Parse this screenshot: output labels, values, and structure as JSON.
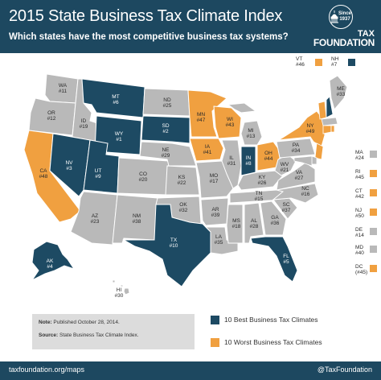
{
  "header": {
    "title": "2015 State Business Tax Climate Index",
    "subtitle": "Which states have the most competitive business tax systems?"
  },
  "logo": {
    "since": "Since",
    "year": "1937",
    "line1": "TAX",
    "line2": "FOUNDATION"
  },
  "colors": {
    "best": "#1d4a63",
    "worst": "#f0a040",
    "other": "#b9b9b9",
    "header": "#1d4860"
  },
  "states": [
    {
      "abbr": "WA",
      "rank": "#11",
      "category": "other"
    },
    {
      "abbr": "OR",
      "rank": "#12",
      "category": "other"
    },
    {
      "abbr": "CA",
      "rank": "#48",
      "category": "worst"
    },
    {
      "abbr": "ID",
      "rank": "#19",
      "category": "other"
    },
    {
      "abbr": "NV",
      "rank": "#3",
      "category": "best"
    },
    {
      "abbr": "MT",
      "rank": "#6",
      "category": "best"
    },
    {
      "abbr": "WY",
      "rank": "#1",
      "category": "best"
    },
    {
      "abbr": "UT",
      "rank": "#9",
      "category": "best"
    },
    {
      "abbr": "AZ",
      "rank": "#23",
      "category": "other"
    },
    {
      "abbr": "CO",
      "rank": "#20",
      "category": "other"
    },
    {
      "abbr": "NM",
      "rank": "#38",
      "category": "other"
    },
    {
      "abbr": "ND",
      "rank": "#25",
      "category": "other"
    },
    {
      "abbr": "SD",
      "rank": "#2",
      "category": "best"
    },
    {
      "abbr": "NE",
      "rank": "#29",
      "category": "other"
    },
    {
      "abbr": "KS",
      "rank": "#22",
      "category": "other"
    },
    {
      "abbr": "OK",
      "rank": "#32",
      "category": "other"
    },
    {
      "abbr": "TX",
      "rank": "#10",
      "category": "best"
    },
    {
      "abbr": "MN",
      "rank": "#47",
      "category": "worst"
    },
    {
      "abbr": "IA",
      "rank": "#41",
      "category": "worst"
    },
    {
      "abbr": "MO",
      "rank": "#17",
      "category": "other"
    },
    {
      "abbr": "AR",
      "rank": "#39",
      "category": "other"
    },
    {
      "abbr": "LA",
      "rank": "#35",
      "category": "other"
    },
    {
      "abbr": "WI",
      "rank": "#43",
      "category": "worst"
    },
    {
      "abbr": "IL",
      "rank": "#31",
      "category": "other"
    },
    {
      "abbr": "MI",
      "rank": "#13",
      "category": "other"
    },
    {
      "abbr": "IN",
      "rank": "#8",
      "category": "best"
    },
    {
      "abbr": "OH",
      "rank": "#44",
      "category": "worst"
    },
    {
      "abbr": "KY",
      "rank": "#26",
      "category": "other"
    },
    {
      "abbr": "TN",
      "rank": "#15",
      "category": "other"
    },
    {
      "abbr": "MS",
      "rank": "#18",
      "category": "other"
    },
    {
      "abbr": "AL",
      "rank": "#28",
      "category": "other"
    },
    {
      "abbr": "GA",
      "rank": "#36",
      "category": "other"
    },
    {
      "abbr": "FL",
      "rank": "#5",
      "category": "best"
    },
    {
      "abbr": "SC",
      "rank": "#37",
      "category": "other"
    },
    {
      "abbr": "NC",
      "rank": "#16",
      "category": "other"
    },
    {
      "abbr": "VA",
      "rank": "#27",
      "category": "other"
    },
    {
      "abbr": "WV",
      "rank": "#21",
      "category": "other"
    },
    {
      "abbr": "PA",
      "rank": "#34",
      "category": "other"
    },
    {
      "abbr": "NY",
      "rank": "#49",
      "category": "worst"
    },
    {
      "abbr": "ME",
      "rank": "#33",
      "category": "other"
    },
    {
      "abbr": "AK",
      "rank": "#4",
      "category": "best"
    },
    {
      "abbr": "HI",
      "rank": "#30",
      "category": "other"
    }
  ],
  "northeast": [
    {
      "abbr": "VT",
      "rank": "#46",
      "category": "worst"
    },
    {
      "abbr": "NH",
      "rank": "#7",
      "category": "best"
    },
    {
      "abbr": "MA",
      "rank": "#24",
      "category": "other"
    },
    {
      "abbr": "RI",
      "rank": "#45",
      "category": "worst"
    },
    {
      "abbr": "CT",
      "rank": "#42",
      "category": "worst"
    },
    {
      "abbr": "NJ",
      "rank": "#50",
      "category": "worst"
    },
    {
      "abbr": "DE",
      "rank": "#14",
      "category": "other"
    },
    {
      "abbr": "MD",
      "rank": "#40",
      "category": "other"
    },
    {
      "abbr": "DC",
      "rank": "(#45)",
      "category": "worst"
    }
  ],
  "note": {
    "note_label": "Note:",
    "note_text": "Published October 28, 2014.",
    "source_label": "Source:",
    "source_text": "State Business Tax Climate Index."
  },
  "legend": {
    "best_label": "10 Best Business Tax Climates",
    "worst_label": "10 Worst Business Tax Climates"
  },
  "footer": {
    "left": "taxfoundation.org/maps",
    "right": "@TaxFoundation"
  }
}
